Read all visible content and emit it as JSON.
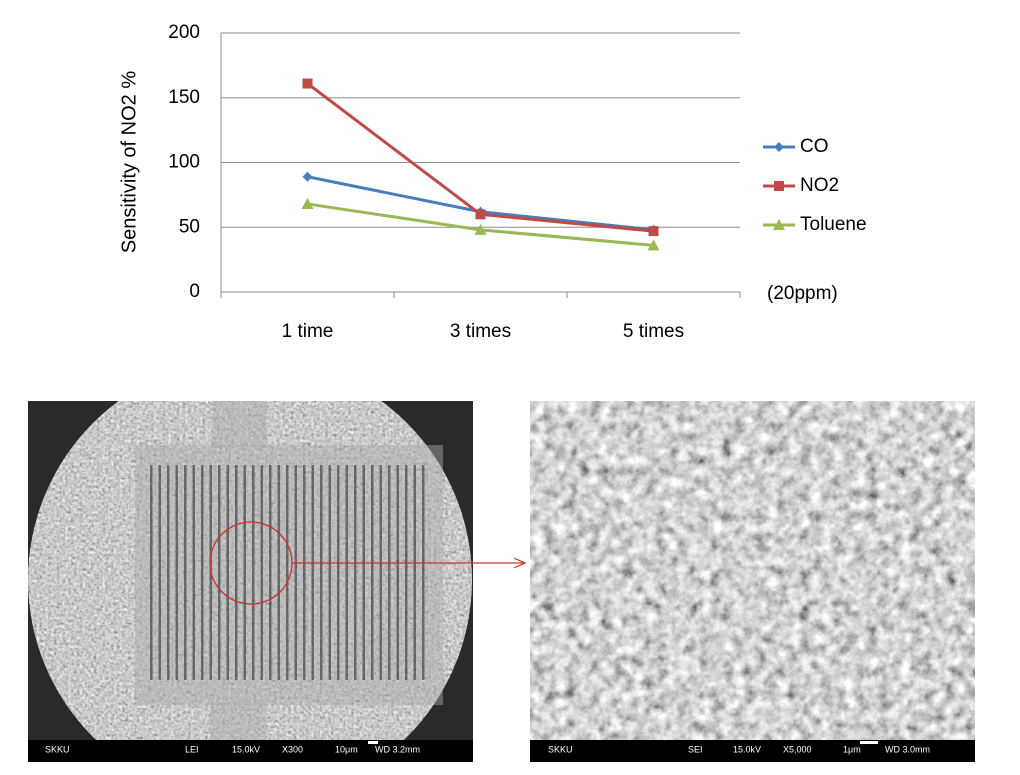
{
  "chart_data": {
    "type": "line",
    "y_label": "Sensitivity  of NO2 %",
    "annotation": "(20ppm)",
    "categories": [
      "1 time",
      "3 times",
      "5 times"
    ],
    "series": [
      {
        "name": "CO",
        "color": "#4a7ebb",
        "marker": "diamond",
        "values": [
          89,
          62,
          48
        ]
      },
      {
        "name": "NO2",
        "color": "#be4b48",
        "marker": "square",
        "values": [
          161,
          60,
          47
        ]
      },
      {
        "name": "Toluene",
        "color": "#98b954",
        "marker": "triangle",
        "values": [
          68,
          48,
          36
        ]
      }
    ],
    "ylim": [
      0,
      200
    ],
    "yticks": [
      0,
      50,
      100,
      150,
      200
    ],
    "grid": true
  },
  "images": [
    {
      "info": [
        "SKKU",
        "LEI",
        "15.0kV",
        "X300",
        "10μm",
        "WD 3.2mm"
      ]
    },
    {
      "info": [
        "SKKU",
        "SEI",
        "15.0kV",
        "X5,000",
        "1μm",
        "WD 3.0mm"
      ]
    }
  ]
}
